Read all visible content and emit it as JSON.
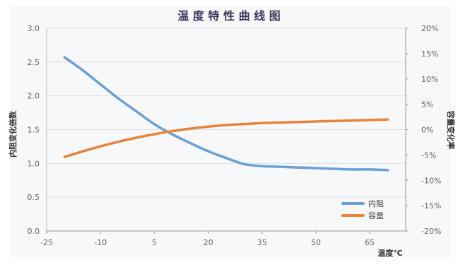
{
  "chart_data": {
    "type": "line",
    "title": "温 度 特 性 曲 线 图",
    "xlabel": "温度℃",
    "ylabel_left": "内阻变化倍数",
    "ylabel_right": "容量变化率",
    "x_ticks": [
      "-25",
      "-10",
      "5",
      "20",
      "35",
      "50",
      "65"
    ],
    "x_range": [
      -25,
      75
    ],
    "y_left_ticks": [
      "0.0",
      "0.5",
      "1.0",
      "1.5",
      "2.0",
      "2.5",
      "3.0"
    ],
    "y_left_range": [
      0,
      3
    ],
    "y_right_ticks": [
      "20%",
      "15%",
      "10%",
      "5%",
      "0%",
      "-5%",
      "-10%",
      "-15%",
      "-20%"
    ],
    "y_right_range": [
      -20,
      20
    ],
    "grid": true,
    "legend_position": "bottom-right",
    "series": [
      {
        "name": "内阻",
        "axis": "left",
        "color": "#6a9fd8",
        "x": [
          -20,
          -15,
          -10,
          -5,
          0,
          5,
          10,
          15,
          20,
          25,
          30,
          35,
          40,
          45,
          50,
          55,
          60,
          65,
          70
        ],
        "y": [
          2.57,
          2.38,
          2.17,
          1.96,
          1.77,
          1.58,
          1.43,
          1.3,
          1.18,
          1.08,
          0.99,
          0.96,
          0.95,
          0.94,
          0.93,
          0.92,
          0.91,
          0.91,
          0.9
        ]
      },
      {
        "name": "容量",
        "axis": "right",
        "color": "#e8833a",
        "x": [
          -20,
          -15,
          -10,
          -5,
          0,
          5,
          10,
          15,
          20,
          25,
          30,
          35,
          40,
          45,
          50,
          55,
          60,
          65,
          70
        ],
        "y": [
          -5.4,
          -4.3,
          -3.3,
          -2.4,
          -1.6,
          -0.9,
          -0.3,
          0.2,
          0.6,
          0.9,
          1.1,
          1.3,
          1.4,
          1.5,
          1.6,
          1.7,
          1.8,
          1.9,
          2.0
        ]
      }
    ]
  }
}
